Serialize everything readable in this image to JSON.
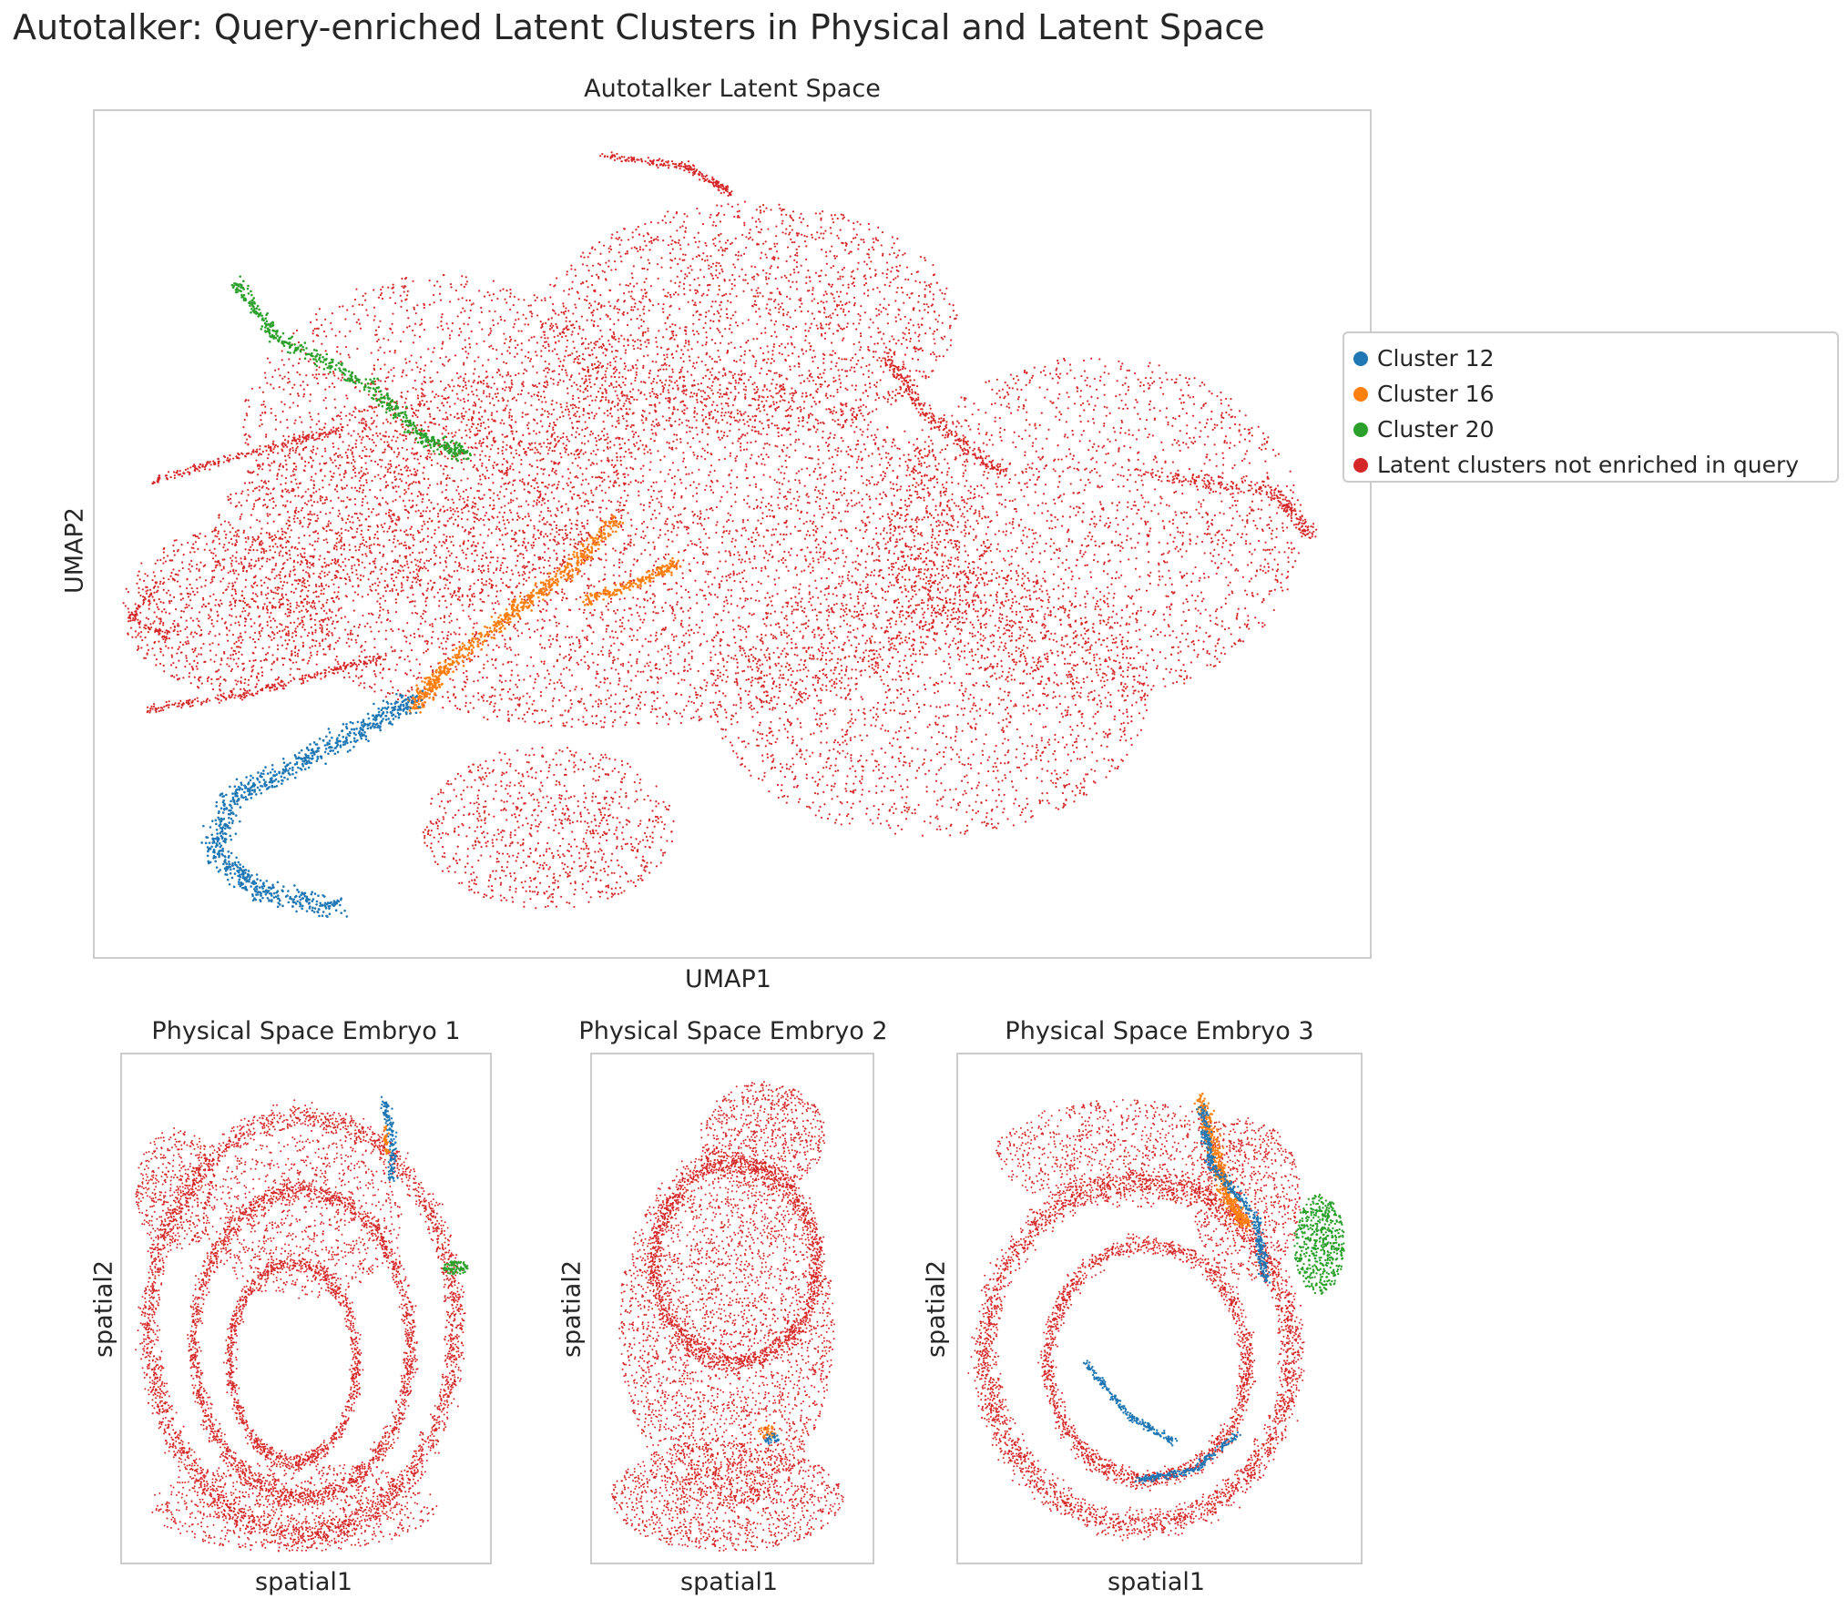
{
  "figure": {
    "title": "Autotalker: Query-enriched Latent Clusters in Physical and Latent Space"
  },
  "colors": {
    "cluster_12": "#1f77b4",
    "cluster_16": "#ff7f0e",
    "cluster_20": "#2ca02c",
    "not_enriched": "#d62728"
  },
  "legend": {
    "items": [
      {
        "label": "Cluster 12",
        "color": "#1f77b4"
      },
      {
        "label": "Cluster 16",
        "color": "#ff7f0e"
      },
      {
        "label": "Cluster 20",
        "color": "#2ca02c"
      },
      {
        "label": "Latent clusters not enriched in query",
        "color": "#d62728"
      }
    ]
  },
  "chart_data": [
    {
      "type": "scatter",
      "title": "Autotalker Latent Space",
      "xlabel": "UMAP1",
      "ylabel": "UMAP2",
      "ticks": "none",
      "grid": false,
      "legend_position": "right, outside axes",
      "series": [
        {
          "name": "Cluster 12",
          "color": "#1f77b4",
          "region": "lower-left arm"
        },
        {
          "name": "Cluster 16",
          "color": "#ff7f0e",
          "region": "center band"
        },
        {
          "name": "Cluster 20",
          "color": "#2ca02c",
          "region": "upper-left arm"
        },
        {
          "name": "Latent clusters not enriched in query",
          "color": "#d62728",
          "region": "bulk of embedding"
        }
      ]
    },
    {
      "type": "scatter",
      "title": "Physical Space Embryo 1",
      "xlabel": "spatial1",
      "ylabel": "spatial2",
      "ticks": "none",
      "series": [
        {
          "name": "Cluster 12",
          "color": "#1f77b4"
        },
        {
          "name": "Cluster 16",
          "color": "#ff7f0e"
        },
        {
          "name": "Cluster 20",
          "color": "#2ca02c"
        },
        {
          "name": "Latent clusters not enriched in query",
          "color": "#d62728"
        }
      ]
    },
    {
      "type": "scatter",
      "title": "Physical Space Embryo 2",
      "xlabel": "spatial1",
      "ylabel": "spatial2",
      "ticks": "none",
      "series": [
        {
          "name": "Cluster 12",
          "color": "#1f77b4"
        },
        {
          "name": "Cluster 16",
          "color": "#ff7f0e"
        },
        {
          "name": "Latent clusters not enriched in query",
          "color": "#d62728"
        }
      ]
    },
    {
      "type": "scatter",
      "title": "Physical Space Embryo 3",
      "xlabel": "spatial1",
      "ylabel": "spatial2",
      "ticks": "none",
      "series": [
        {
          "name": "Cluster 12",
          "color": "#1f77b4"
        },
        {
          "name": "Cluster 16",
          "color": "#ff7f0e"
        },
        {
          "name": "Cluster 20",
          "color": "#2ca02c"
        },
        {
          "name": "Latent clusters not enriched in query",
          "color": "#d62728"
        }
      ]
    }
  ]
}
